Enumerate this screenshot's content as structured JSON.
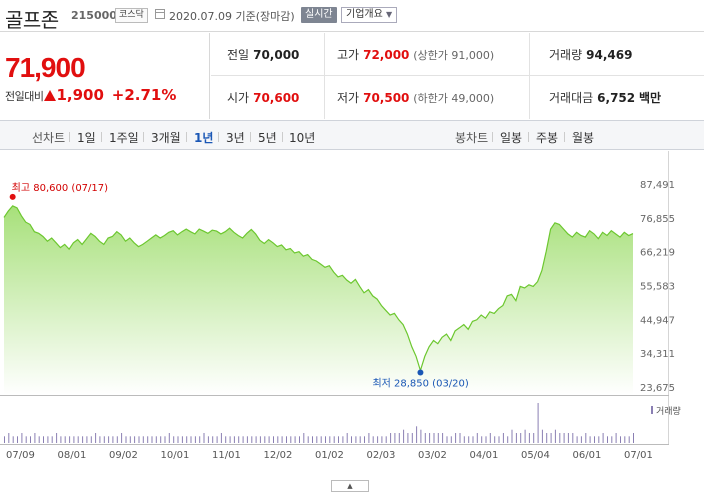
{
  "header": {
    "name": "골프존",
    "code": "215000",
    "market": "코스닥",
    "date": "2020.07.09 기준(장마감)",
    "realtime": "실시간",
    "corp_info": "기업개요"
  },
  "price": {
    "current": "71,900",
    "change_label": "전일대비",
    "change": "1,900",
    "change_pct": "+2.71%"
  },
  "stats": {
    "prev_label": "전일",
    "prev": "70,000",
    "high_label": "고가",
    "high": "72,000",
    "high_sub": "(상한가 91,000)",
    "vol_label": "거래량",
    "vol": "94,469",
    "open_label": "시가",
    "open": "70,600",
    "low_label": "저가",
    "low": "70,500",
    "low_sub": "(하한가 49,000)",
    "amount_label": "거래대금",
    "amount": "6,752",
    "amount_unit": "백만"
  },
  "tabs": {
    "line_label": "선차트",
    "periods": [
      "1일",
      "1주일",
      "3개월",
      "1년",
      "3년",
      "5년",
      "10년"
    ],
    "active_period": "1년",
    "candle_label": "봉차트",
    "candles": [
      "일봉",
      "주봉",
      "월봉"
    ]
  },
  "chart_data": {
    "type": "area",
    "y_ticks": [
      "87,491",
      "76,855",
      "66,219",
      "55,583",
      "44,947",
      "34,311",
      "23,675"
    ],
    "ylim": [
      23675,
      87491
    ],
    "x_ticks": [
      "07/09",
      "08/01",
      "09/02",
      "10/01",
      "11/01",
      "12/02",
      "01/02",
      "02/03",
      "03/02",
      "04/01",
      "05/04",
      "06/01",
      "07/01"
    ],
    "max_label": "최고 80,600 (07/17)",
    "min_label": "최저 28,850 (03/20)",
    "volume_legend": "거래량",
    "series": [
      {
        "values": [
          77000,
          79000,
          80600,
          80000,
          77500,
          75500,
          74800,
          72500,
          72000,
          71000,
          69500,
          70500,
          69000,
          67500,
          68500,
          67000,
          69000,
          70000,
          68500,
          70200,
          72000,
          71000,
          69500,
          68500,
          70500,
          71000,
          72500,
          71500,
          69500,
          70500,
          69000,
          67800,
          68500,
          69500,
          70500,
          71500,
          70500,
          71300,
          72300,
          72800,
          71500,
          72500,
          73300,
          72500,
          71800,
          73300,
          72700,
          72000,
          73000,
          72700,
          71800,
          72500,
          73600,
          72300,
          71300,
          70500,
          72000,
          73200,
          71800,
          69800,
          68800,
          70000,
          69000,
          67800,
          68300,
          66800,
          67200,
          65800,
          66200,
          64800,
          65300,
          63800,
          63300,
          62300,
          61300,
          61800,
          59800,
          58300,
          58800,
          57300,
          56300,
          57500,
          55300,
          53300,
          54300,
          52300,
          51300,
          49300,
          47800,
          46300,
          46800,
          44800,
          43300,
          40300,
          36300,
          33300,
          28850,
          33300,
          36300,
          38300,
          37300,
          39300,
          40300,
          38300,
          41300,
          42300,
          43300,
          41800,
          44300,
          44800,
          46300,
          45300,
          47300,
          46800,
          48300,
          49300,
          52300,
          52800,
          50800,
          55300,
          54800,
          55800,
          55300,
          56800,
          60300,
          66300,
          73300,
          75300,
          74800,
          73300,
          71800,
          70800,
          72300,
          71300,
          70800,
          72800,
          71800,
          70300,
          72300,
          71300,
          72800,
          71800,
          70800,
          72300,
          71300,
          71900
        ],
        "volume": [
          2,
          3,
          2,
          2,
          3,
          2,
          2,
          3,
          2,
          2,
          2,
          2,
          3,
          2,
          2,
          2,
          2,
          2,
          2,
          2,
          2,
          3,
          2,
          2,
          2,
          2,
          2,
          3,
          2,
          2,
          2,
          2,
          2,
          2,
          2,
          2,
          2,
          2,
          3,
          2,
          2,
          2,
          2,
          2,
          2,
          2,
          3,
          2,
          2,
          2,
          3,
          2,
          2,
          2,
          2,
          2,
          2,
          2,
          2,
          2,
          2,
          2,
          2,
          2,
          2,
          2,
          2,
          2,
          2,
          3,
          2,
          2,
          2,
          2,
          2,
          2,
          2,
          2,
          2,
          3,
          2,
          2,
          2,
          2,
          3,
          2,
          2,
          2,
          2,
          3,
          3,
          3,
          4,
          3,
          3,
          5,
          4,
          3,
          3,
          3,
          3,
          3,
          2,
          2,
          3,
          3,
          2,
          2,
          2,
          3,
          2,
          2,
          3,
          2,
          2,
          3,
          2,
          4,
          3,
          3,
          4,
          3,
          3,
          12,
          4,
          3,
          3,
          4,
          3,
          3,
          3,
          3,
          2,
          2,
          3,
          2,
          2,
          2,
          3,
          2,
          2,
          3,
          2,
          2,
          2,
          3
        ]
      }
    ]
  },
  "scroll_icon": "caret-up-icon"
}
